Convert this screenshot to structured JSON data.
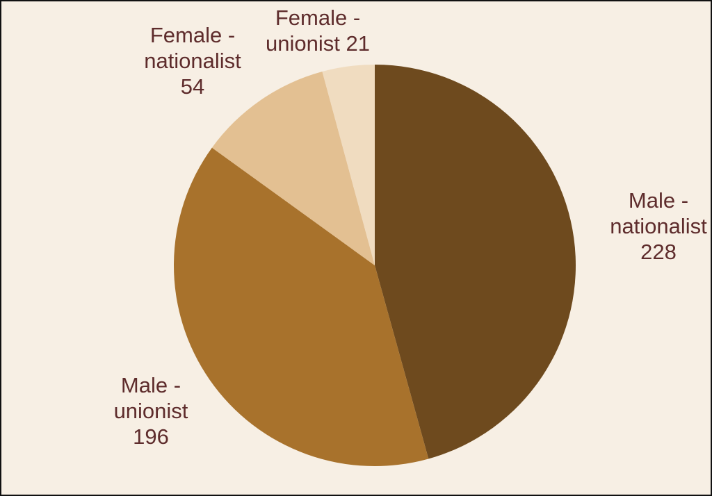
{
  "chart_data": {
    "type": "pie",
    "categories": [
      "Male - nationalist",
      "Male - unionist",
      "Female - nationalist",
      "Female - unionist"
    ],
    "values": [
      228,
      196,
      54,
      21
    ],
    "colors": [
      "#6e4a1e",
      "#a8722c",
      "#e3c092",
      "#f0dcc0"
    ]
  }
}
